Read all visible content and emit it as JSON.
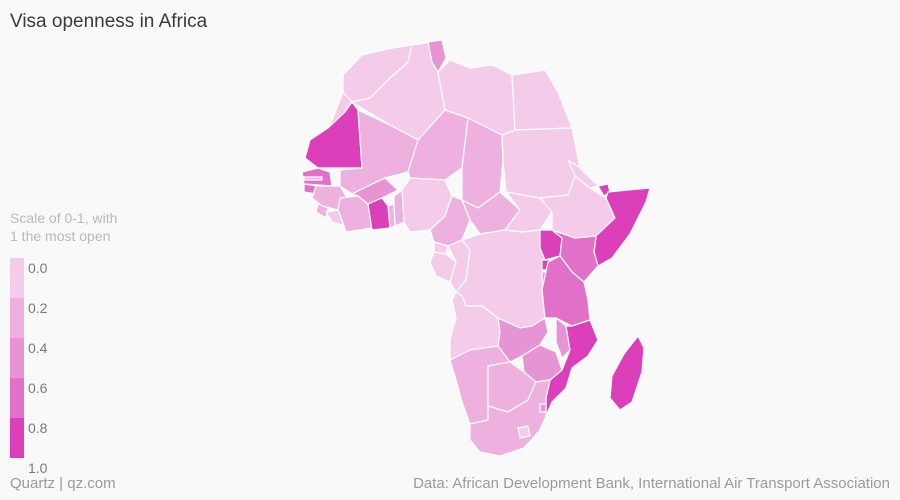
{
  "header": {
    "title": "Visa openness in Africa"
  },
  "legend": {
    "caption_line1": "Scale of 0-1, with",
    "caption_line2": "1 the most open",
    "bins": [
      {
        "color": "#f4cbe9"
      },
      {
        "color": "#eeb1df"
      },
      {
        "color": "#e794d4"
      },
      {
        "color": "#e171c8"
      },
      {
        "color": "#dc3fba"
      }
    ],
    "ticks": [
      "0.0",
      "0.2",
      "0.4",
      "0.6",
      "0.8",
      "1.0"
    ]
  },
  "colors": {
    "background": "#f9f9f9",
    "border": "#ffffff"
  },
  "footer": {
    "credit": "Quartz | qz.com",
    "source": "Data: African Development Bank, International Air Transport Association"
  }
}
